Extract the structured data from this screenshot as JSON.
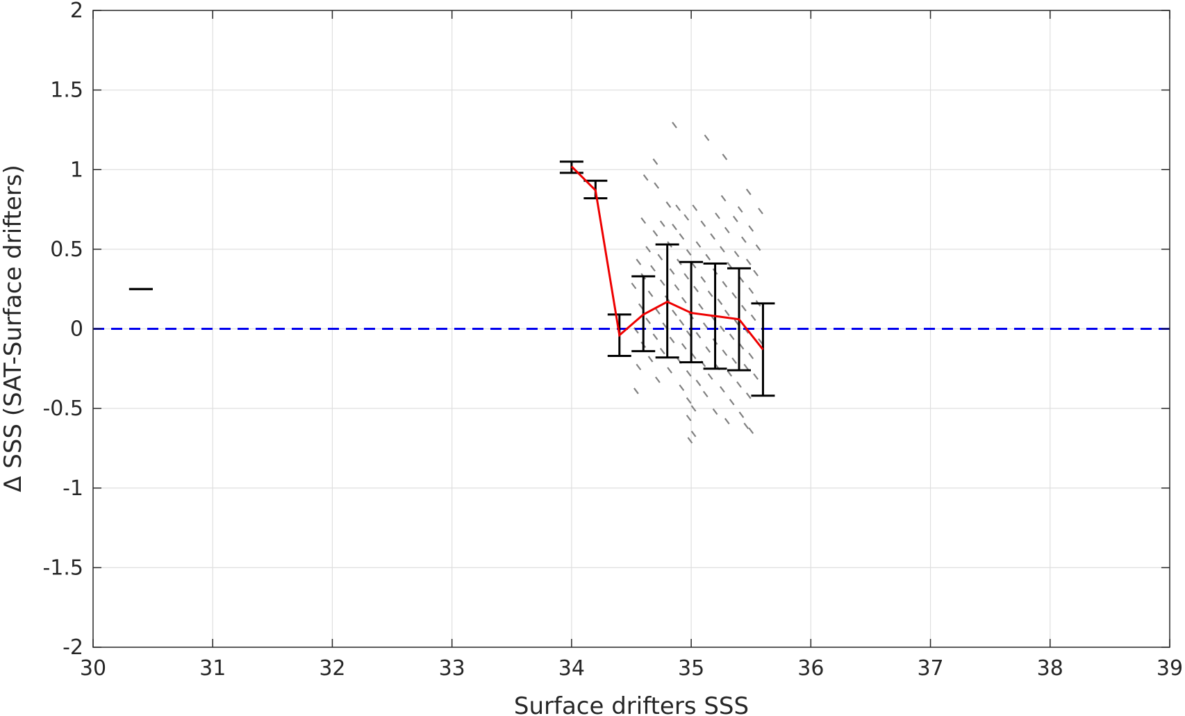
{
  "chart_data": {
    "type": "scatter",
    "xlabel": "Surface drifters SSS",
    "ylabel": "Δ SSS (SAT-Surface drifters)",
    "xlim": [
      30,
      39
    ],
    "ylim": [
      -2,
      2
    ],
    "xticks": [
      30,
      31,
      32,
      33,
      34,
      35,
      36,
      37,
      38,
      39
    ],
    "yticks": [
      -2,
      -1.5,
      -1,
      -0.5,
      0,
      0.5,
      1,
      1.5,
      2
    ],
    "grid": true,
    "reference_line": {
      "y": 0,
      "style": "dashed",
      "color": "#0000ee"
    },
    "binned_mean": {
      "color": "#ee0000",
      "x": [
        34.0,
        34.2,
        34.4,
        34.6,
        34.8,
        35.0,
        35.2,
        35.4,
        35.6
      ],
      "y": [
        1.02,
        0.87,
        -0.04,
        0.09,
        0.17,
        0.1,
        0.08,
        0.06,
        -0.13
      ]
    },
    "error_bars": [
      {
        "x": 30.4,
        "low": 0.25,
        "high": 0.25
      },
      {
        "x": 34.0,
        "low": 0.98,
        "high": 1.05
      },
      {
        "x": 34.2,
        "low": 0.82,
        "high": 0.93
      },
      {
        "x": 34.4,
        "low": -0.17,
        "high": 0.09
      },
      {
        "x": 34.6,
        "low": -0.14,
        "high": 0.33
      },
      {
        "x": 34.8,
        "low": -0.18,
        "high": 0.53
      },
      {
        "x": 35.0,
        "low": -0.21,
        "high": 0.42
      },
      {
        "x": 35.2,
        "low": -0.25,
        "high": 0.41
      },
      {
        "x": 35.4,
        "low": -0.26,
        "high": 0.38
      },
      {
        "x": 35.6,
        "low": -0.42,
        "high": 0.16
      }
    ],
    "scatter_cloud": {
      "color": "#808080",
      "points": [
        [
          34.86,
          1.28
        ],
        [
          35.13,
          1.2
        ],
        [
          35.28,
          1.08
        ],
        [
          34.7,
          1.05
        ],
        [
          34.62,
          0.95
        ],
        [
          34.71,
          0.9
        ],
        [
          35.48,
          0.86
        ],
        [
          35.27,
          0.82
        ],
        [
          34.81,
          0.78
        ],
        [
          34.89,
          0.76
        ],
        [
          35.03,
          0.76
        ],
        [
          35.41,
          0.75
        ],
        [
          35.58,
          0.74
        ],
        [
          35.22,
          0.71
        ],
        [
          34.6,
          0.68
        ],
        [
          34.96,
          0.7
        ],
        [
          35.37,
          0.69
        ],
        [
          34.76,
          0.66
        ],
        [
          35.1,
          0.66
        ],
        [
          34.86,
          0.64
        ],
        [
          35.3,
          0.62
        ],
        [
          35.5,
          0.63
        ],
        [
          34.7,
          0.6
        ],
        [
          34.92,
          0.58
        ],
        [
          35.18,
          0.58
        ],
        [
          35.44,
          0.56
        ],
        [
          34.82,
          0.53
        ],
        [
          35.06,
          0.53
        ],
        [
          35.56,
          0.51
        ],
        [
          34.64,
          0.5
        ],
        [
          35.26,
          0.5
        ],
        [
          34.98,
          0.48
        ],
        [
          35.38,
          0.47
        ],
        [
          34.74,
          0.45
        ],
        [
          35.14,
          0.45
        ],
        [
          34.56,
          0.42
        ],
        [
          34.9,
          0.42
        ],
        [
          35.48,
          0.42
        ],
        [
          35.02,
          0.4
        ],
        [
          35.32,
          0.4
        ],
        [
          34.68,
          0.38
        ],
        [
          34.84,
          0.36
        ],
        [
          35.2,
          0.36
        ],
        [
          35.54,
          0.35
        ],
        [
          34.6,
          0.33
        ],
        [
          34.96,
          0.33
        ],
        [
          35.1,
          0.31
        ],
        [
          35.42,
          0.31
        ],
        [
          34.76,
          0.29
        ],
        [
          35.28,
          0.28
        ],
        [
          34.52,
          0.27
        ],
        [
          34.88,
          0.26
        ],
        [
          35.04,
          0.25
        ],
        [
          35.5,
          0.24
        ],
        [
          34.66,
          0.22
        ],
        [
          35.16,
          0.22
        ],
        [
          35.36,
          0.21
        ],
        [
          34.8,
          0.19
        ],
        [
          34.94,
          0.18
        ],
        [
          35.24,
          0.17
        ],
        [
          35.56,
          0.16
        ],
        [
          34.58,
          0.14
        ],
        [
          35.08,
          0.14
        ],
        [
          35.44,
          0.13
        ],
        [
          34.72,
          0.11
        ],
        [
          34.86,
          0.1
        ],
        [
          35.3,
          0.1
        ],
        [
          35.0,
          0.08
        ],
        [
          35.18,
          0.07
        ],
        [
          35.52,
          0.07
        ],
        [
          34.64,
          0.05
        ],
        [
          34.92,
          0.04
        ],
        [
          35.38,
          0.04
        ],
        [
          34.78,
          0.02
        ],
        [
          35.12,
          0.02
        ],
        [
          35.26,
          0.0
        ],
        [
          34.54,
          -0.01
        ],
        [
          35.46,
          -0.01
        ],
        [
          34.98,
          -0.03
        ],
        [
          35.06,
          -0.04
        ],
        [
          34.7,
          -0.05
        ],
        [
          35.34,
          -0.05
        ],
        [
          34.84,
          -0.07
        ],
        [
          35.2,
          -0.08
        ],
        [
          35.58,
          -0.08
        ],
        [
          34.6,
          -0.1
        ],
        [
          34.94,
          -0.11
        ],
        [
          35.42,
          -0.11
        ],
        [
          35.14,
          -0.13
        ],
        [
          34.76,
          -0.14
        ],
        [
          35.28,
          -0.15
        ],
        [
          35.02,
          -0.17
        ],
        [
          35.5,
          -0.17
        ],
        [
          34.66,
          -0.19
        ],
        [
          34.9,
          -0.2
        ],
        [
          35.36,
          -0.2
        ],
        [
          35.1,
          -0.22
        ],
        [
          34.56,
          -0.24
        ],
        [
          35.22,
          -0.24
        ],
        [
          35.46,
          -0.24
        ],
        [
          34.82,
          -0.26
        ],
        [
          34.98,
          -0.28
        ],
        [
          35.32,
          -0.28
        ],
        [
          35.16,
          -0.3
        ],
        [
          35.54,
          -0.3
        ],
        [
          34.72,
          -0.32
        ],
        [
          35.06,
          -0.34
        ],
        [
          35.4,
          -0.35
        ],
        [
          34.92,
          -0.37
        ],
        [
          35.26,
          -0.38
        ],
        [
          34.54,
          -0.39
        ],
        [
          35.12,
          -0.41
        ],
        [
          35.48,
          -0.42
        ],
        [
          34.98,
          -0.45
        ],
        [
          35.34,
          -0.46
        ],
        [
          35.02,
          -0.5
        ],
        [
          35.2,
          -0.52
        ],
        [
          35.42,
          -0.54
        ],
        [
          34.98,
          -0.56
        ],
        [
          35.3,
          -0.58
        ],
        [
          35.46,
          -0.61
        ],
        [
          35.5,
          -0.64
        ],
        [
          35.02,
          -0.66
        ],
        [
          34.99,
          -0.7
        ]
      ]
    }
  }
}
